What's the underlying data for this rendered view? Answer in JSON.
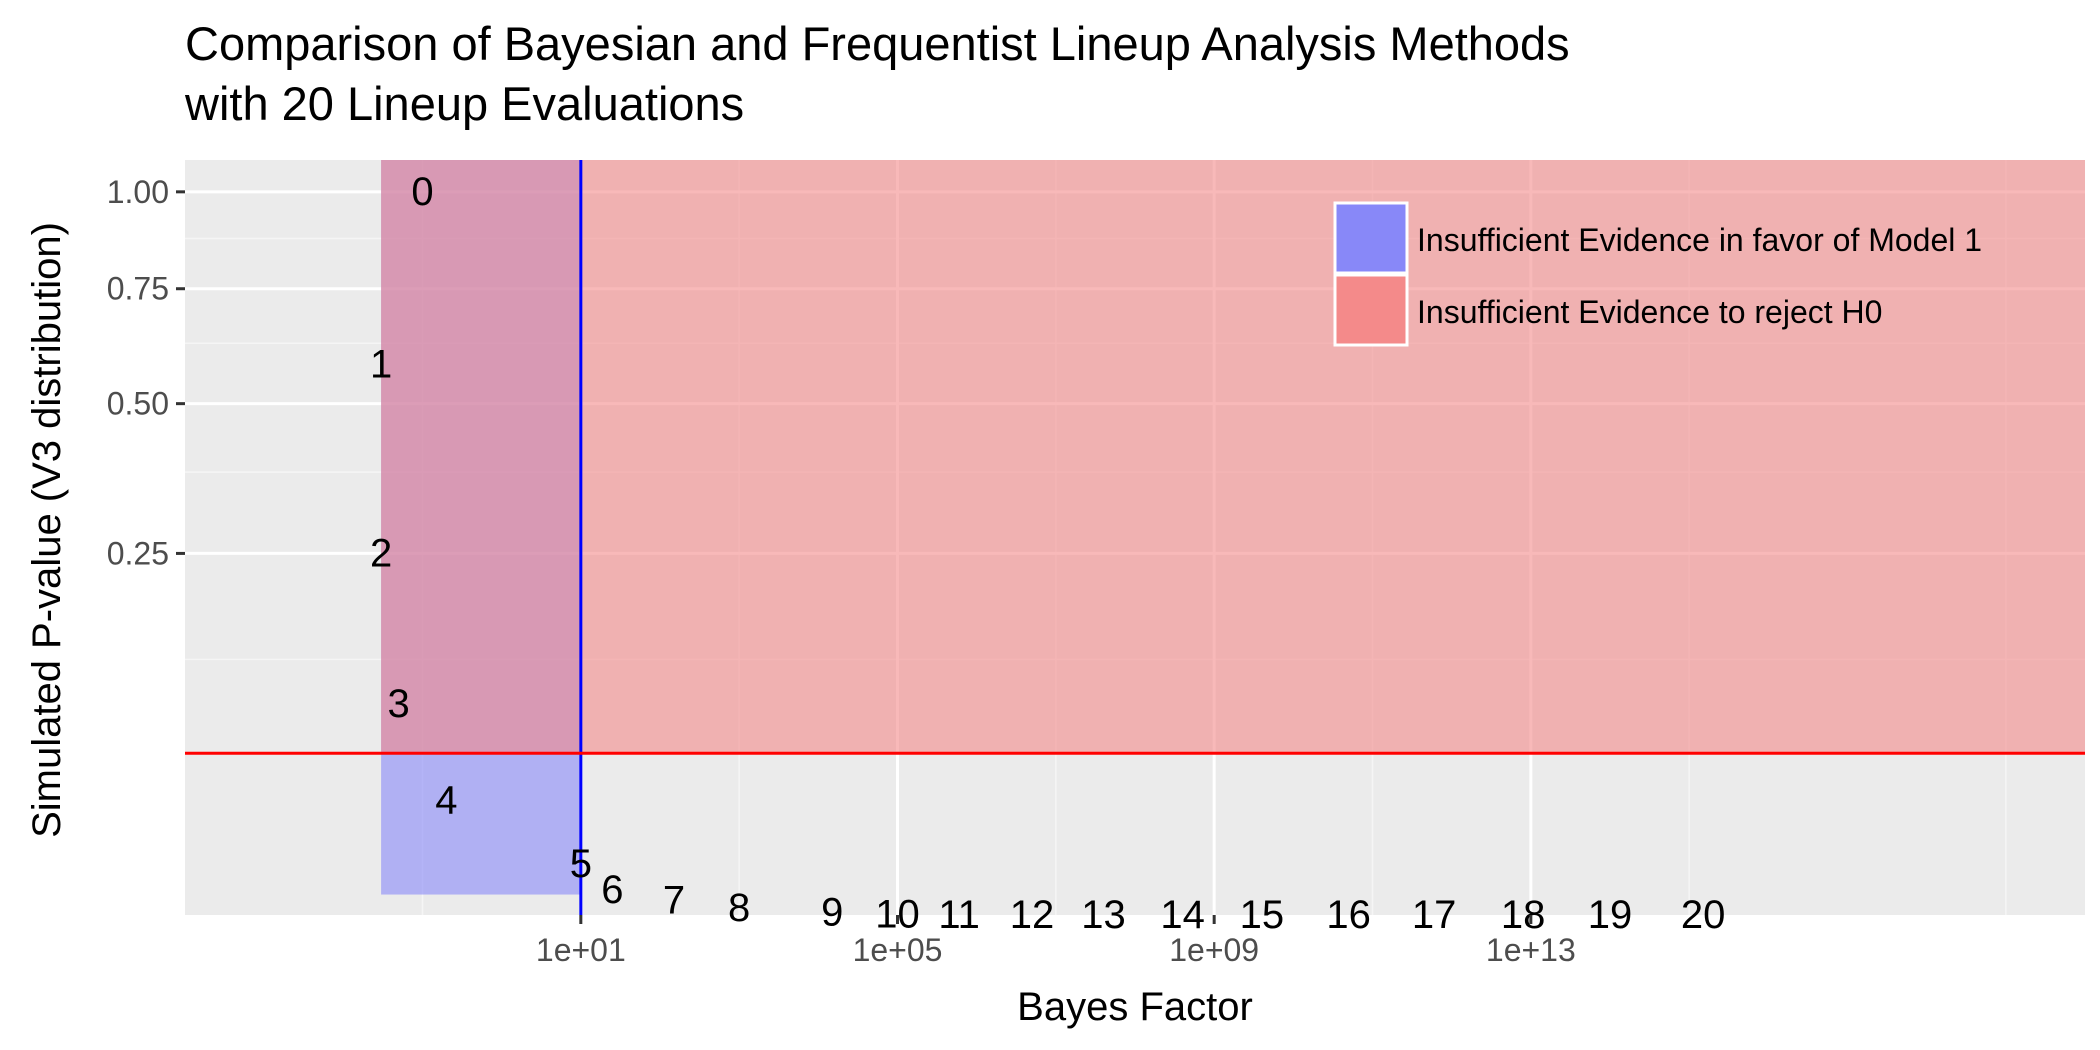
{
  "chart_data": {
    "type": "scatter",
    "title_line1": "Comparison of Bayesian and Frequentist Lineup Analysis Methods",
    "title_line2": "with 20 Lineup Evaluations",
    "xlabel": "Bayes Factor",
    "ylabel": "Simulated P-value (V3 distribution)",
    "x_scale": "log10",
    "y_scale": "sqrt",
    "xlim": [
      0.0001,
      1e+20
    ],
    "ylim": [
      0.0,
      1.09
    ],
    "x_ticks": [
      {
        "value": 10,
        "label": "1e+01"
      },
      {
        "value": 100000,
        "label": "1e+05"
      },
      {
        "value": 1000000000,
        "label": "1e+09"
      },
      {
        "value": 10000000000000,
        "label": "1e+13"
      }
    ],
    "y_ticks": [
      {
        "value": 0.25,
        "label": "0.25"
      },
      {
        "value": 0.5,
        "label": "0.50"
      },
      {
        "value": 0.75,
        "label": "0.75"
      },
      {
        "value": 1.0,
        "label": "1.00"
      }
    ],
    "grid": true,
    "points": [
      {
        "label": "0",
        "x": 0.1,
        "y": 1.0
      },
      {
        "label": "1",
        "x": 0.03,
        "y": 0.58
      },
      {
        "label": "2",
        "x": 0.03,
        "y": 0.25
      },
      {
        "label": "3",
        "x": 0.05,
        "y": 0.085
      },
      {
        "label": "4",
        "x": 0.2,
        "y": 0.025
      },
      {
        "label": "5",
        "x": 10,
        "y": 0.005
      },
      {
        "label": "6",
        "x": 25,
        "y": 0.0012
      },
      {
        "label": "7",
        "x": 150,
        "y": 0.0004
      },
      {
        "label": "8",
        "x": 1000,
        "y": 0.0001
      },
      {
        "label": "9",
        "x": 15000,
        "y": 1e-05
      },
      {
        "label": "10",
        "x": 100000,
        "y": 1e-06
      },
      {
        "label": "11",
        "x": 600000,
        "y": 1e-07
      },
      {
        "label": "12",
        "x": 5000000,
        "y": 0.0
      },
      {
        "label": "13",
        "x": 40000000,
        "y": 0.0
      },
      {
        "label": "14",
        "x": 400000000,
        "y": 0.0
      },
      {
        "label": "15",
        "x": 4000000000,
        "y": 0.0
      },
      {
        "label": "16",
        "x": 50000000000,
        "y": 0.0
      },
      {
        "label": "17",
        "x": 600000000000,
        "y": 0.0
      },
      {
        "label": "18",
        "x": 8000000000000,
        "y": 0.0
      },
      {
        "label": "19",
        "x": 100000000000000,
        "y": 0.0
      },
      {
        "label": "20",
        "x": 1500000000000000,
        "y": 0.0
      }
    ],
    "bayes_region": {
      "x_min": 0.03,
      "x_max": 10,
      "y_min": 0.0,
      "y_max": 1.09,
      "color": "#8888f8",
      "opacity": 0.6
    },
    "freq_region": {
      "x_min": 0.03,
      "x_max": 1e+20,
      "y_min": 0.05,
      "y_max": 1.09,
      "color": "#f48a8a",
      "opacity": 0.6
    },
    "bayes_threshold": {
      "x": 10,
      "color": "#0000ff"
    },
    "freq_threshold": {
      "y": 0.05,
      "color": "#ff0000"
    },
    "legend": {
      "position": "top-right",
      "items": [
        {
          "label": "Insufficient Evidence in favor of Model 1",
          "color": "#8888f8"
        },
        {
          "label": "Insufficient Evidence to reject H0",
          "color": "#f48a8a"
        }
      ]
    },
    "colors": {
      "panel_bg": "#ebebeb",
      "grid_major": "#ffffff",
      "grid_minor": "#f5f5f5"
    }
  }
}
